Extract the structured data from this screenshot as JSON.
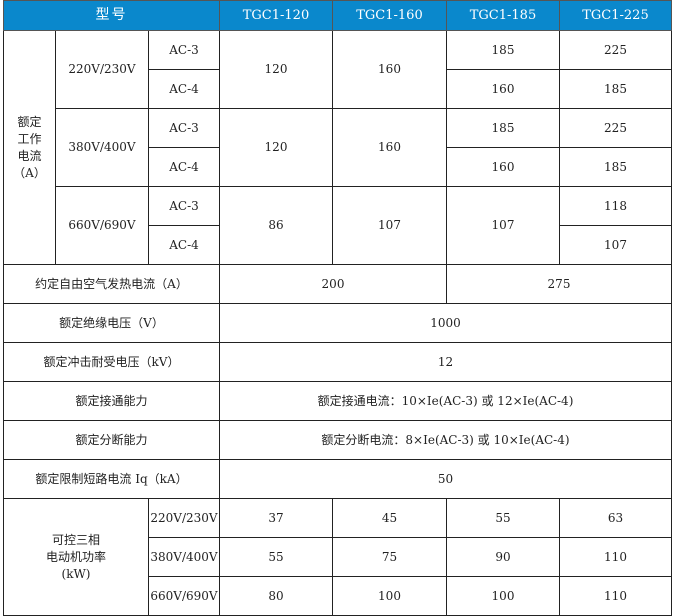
{
  "header": {
    "model_label": "型号",
    "models": [
      "TGC1-120",
      "TGC1-160",
      "TGC1-185",
      "TGC1-225"
    ]
  },
  "rated_current": {
    "label_lines": [
      "额定",
      "工作",
      "电流",
      "（A）"
    ],
    "groups": [
      {
        "voltage": "220V/230V",
        "ac3": "AC-3",
        "ac4": "AC-4",
        "m120": "120",
        "m160": "160",
        "m185_ac3": "185",
        "m225_ac3": "225",
        "m185_ac4": "160",
        "m225_ac4": "185"
      },
      {
        "voltage": "380V/400V",
        "ac3": "AC-3",
        "ac4": "AC-4",
        "m120": "120",
        "m160": "160",
        "m185_ac3": "185",
        "m225_ac3": "225",
        "m185_ac4": "160",
        "m225_ac4": "185"
      },
      {
        "voltage": "660V/690V",
        "ac3": "AC-3",
        "ac4": "AC-4",
        "m120": "86",
        "m160": "107",
        "m185": "107",
        "m225_ac3": "118",
        "m225_ac4": "107"
      }
    ]
  },
  "thermal_current": {
    "label": "约定自由空气发热电流（A）",
    "value_a": "200",
    "value_b": "275"
  },
  "rows": [
    {
      "label": "额定绝缘电压（V）",
      "value": "1000"
    },
    {
      "label": "额定冲击耐受电压（kV）",
      "value": "12"
    },
    {
      "label": "额定接通能力",
      "value": "额定接通电流：10×Ie(AC-3) 或 12×Ie(AC-4)"
    },
    {
      "label": "额定分断能力",
      "value": "额定分断电流：8×Ie(AC-3) 或 10×Ie(AC-4)"
    },
    {
      "label": "额定限制短路电流 Iq（kA）",
      "value": "50"
    }
  ],
  "motor_power": {
    "label_lines": [
      "可控三相",
      "电动机功率",
      "(kW)"
    ],
    "rows": [
      {
        "voltage": "220V/230V",
        "values": [
          "37",
          "45",
          "55",
          "63"
        ]
      },
      {
        "voltage": "380V/400V",
        "values": [
          "55",
          "75",
          "90",
          "110"
        ]
      },
      {
        "voltage": "660V/690V",
        "values": [
          "80",
          "100",
          "100",
          "110"
        ]
      }
    ]
  },
  "colors": {
    "header_bg": "#0a88cc",
    "header_text": "#ffffff"
  }
}
